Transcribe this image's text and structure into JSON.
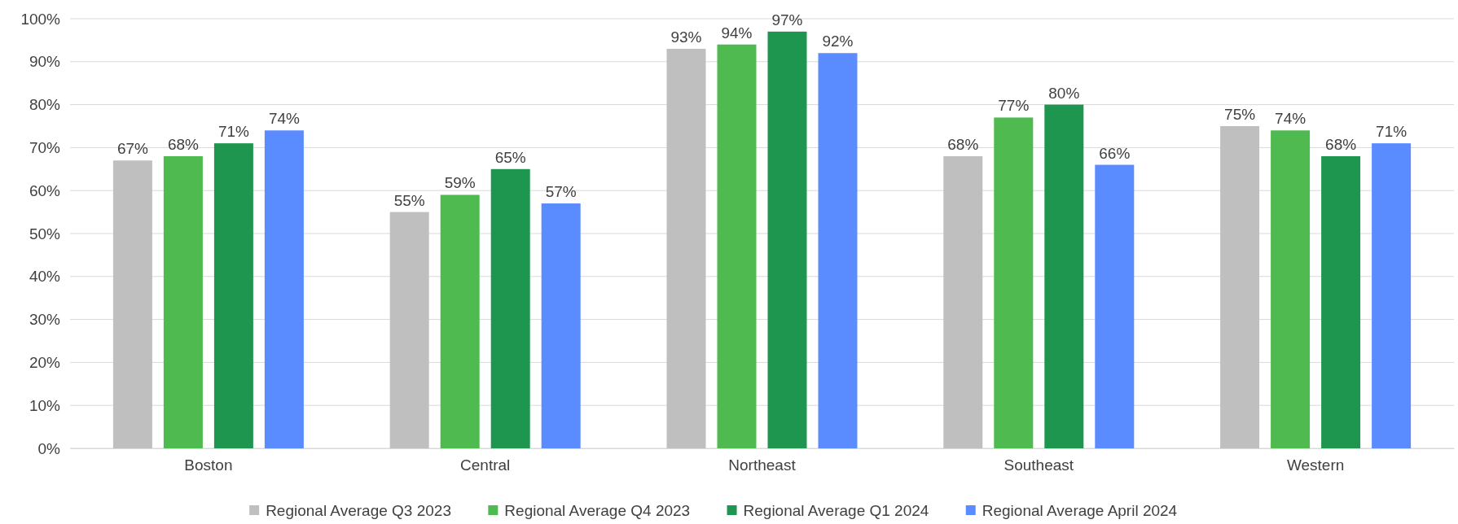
{
  "chart_data": {
    "type": "bar",
    "categories": [
      "Boston",
      "Central",
      "Northeast",
      "Southeast",
      "Western"
    ],
    "series": [
      {
        "name": "Regional Average Q3 2023",
        "color": "#bfbfbf",
        "values": [
          67,
          55,
          93,
          68,
          75
        ],
        "value_labels": [
          "67%",
          "55%",
          "93%",
          "68%",
          "75%"
        ]
      },
      {
        "name": "Regional Average Q4 2023",
        "color": "#4fba4f",
        "values": [
          68,
          59,
          94,
          77,
          74
        ],
        "value_labels": [
          "68%",
          "59%",
          "94%",
          "77%",
          "74%"
        ]
      },
      {
        "name": "Regional Average Q1 2024",
        "color": "#1e9650",
        "values": [
          71,
          65,
          97,
          80,
          68
        ],
        "value_labels": [
          "71%",
          "65%",
          "97%",
          "80%",
          "68%"
        ]
      },
      {
        "name": "Regional Average April 2024",
        "color": "#5b8cff",
        "values": [
          74,
          57,
          92,
          66,
          71
        ],
        "value_labels": [
          "74%",
          "57%",
          "92%",
          "66%",
          "71%"
        ]
      }
    ],
    "ylim": [
      0,
      100
    ],
    "yticks": [
      {
        "value": 0,
        "label": "0%"
      },
      {
        "value": 10,
        "label": "10%"
      },
      {
        "value": 20,
        "label": "20%"
      },
      {
        "value": 30,
        "label": "30%"
      },
      {
        "value": 40,
        "label": "40%"
      },
      {
        "value": 50,
        "label": "50%"
      },
      {
        "value": 60,
        "label": "60%"
      },
      {
        "value": 70,
        "label": "70%"
      },
      {
        "value": 80,
        "label": "80%"
      },
      {
        "value": 90,
        "label": "90%"
      },
      {
        "value": 100,
        "label": "100%"
      }
    ],
    "grid": "y",
    "legend": "bottom"
  }
}
